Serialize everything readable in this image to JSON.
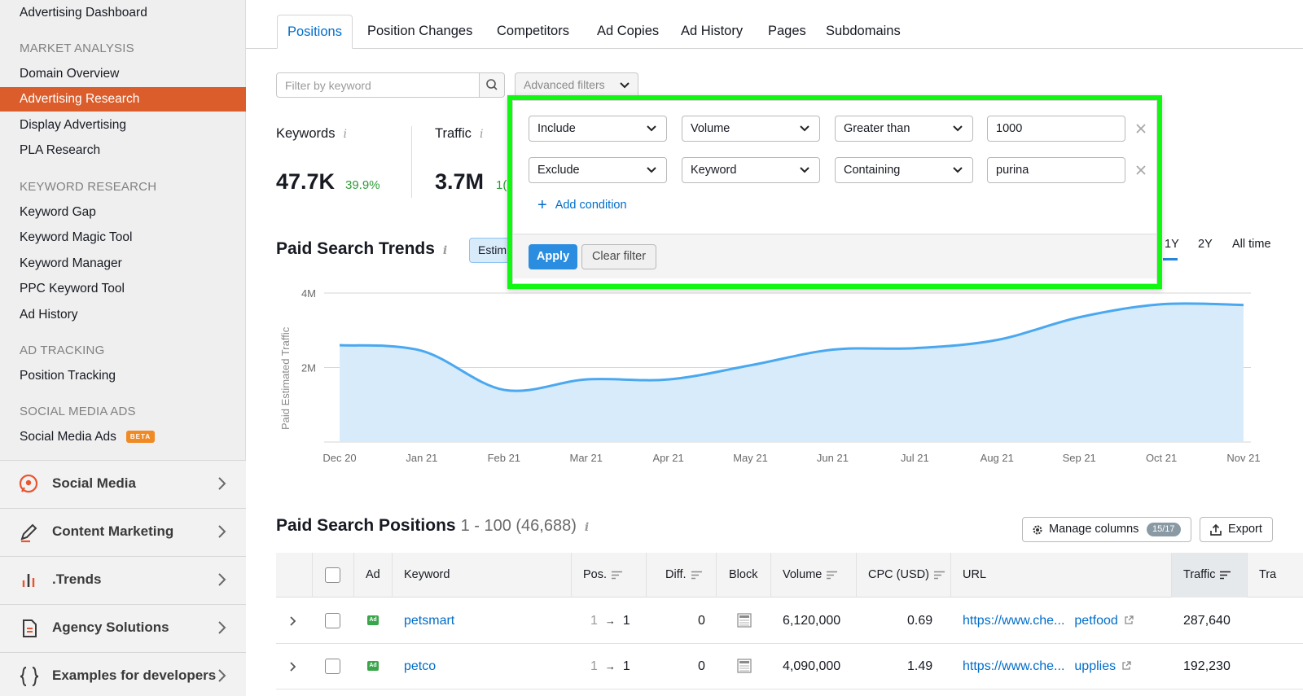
{
  "sidebar": {
    "top_item": "Advertising Dashboard",
    "groups": [
      {
        "title": "MARKET ANALYSIS",
        "items": [
          "Domain Overview",
          "Advertising Research",
          "Display Advertising",
          "PLA Research"
        ]
      },
      {
        "title": "KEYWORD RESEARCH",
        "items": [
          "Keyword Gap",
          "Keyword Magic Tool",
          "Keyword Manager",
          "PPC Keyword Tool",
          "Ad History"
        ]
      },
      {
        "title": "AD TRACKING",
        "items": [
          "Position Tracking"
        ]
      },
      {
        "title": "SOCIAL MEDIA ADS",
        "items": [
          "Social Media Ads"
        ]
      }
    ],
    "active_item": "Advertising Research",
    "beta_badge": "BETA",
    "sections": [
      "Social Media",
      "Content Marketing",
      ".Trends",
      "Agency Solutions",
      "Examples for developers"
    ]
  },
  "tabs": [
    "Positions",
    "Position Changes",
    "Competitors",
    "Ad Copies",
    "Ad History",
    "Pages",
    "Subdomains"
  ],
  "filter": {
    "placeholder": "Filter by keyword",
    "advanced_label": "Advanced filters"
  },
  "metrics": {
    "keywords_label": "Keywords",
    "keywords_value": "47.7K",
    "keywords_change": "39.9%",
    "traffic_label": "Traffic",
    "traffic_value": "3.7M",
    "traffic_change": "1("
  },
  "popup": {
    "conditions": [
      {
        "mode": "Include",
        "field": "Volume",
        "operator": "Greater than",
        "value": "1000"
      },
      {
        "mode": "Exclude",
        "field": "Keyword",
        "operator": "Containing",
        "value": "purina"
      }
    ],
    "add_condition": "Add condition",
    "apply": "Apply",
    "clear": "Clear filter"
  },
  "trends": {
    "title": "Paid Search Trends",
    "estim_label": "Estim",
    "ranges": [
      "1Y",
      "2Y",
      "All time"
    ],
    "active_range": "1Y"
  },
  "chart_data": {
    "type": "area",
    "ylabel": "Paid Estimated Traffic",
    "yticks": [
      "4M",
      "2M"
    ],
    "ylim": [
      0,
      4000000
    ],
    "x": [
      "Dec 20",
      "Jan 21",
      "Feb 21",
      "Mar 21",
      "Apr 21",
      "May 21",
      "Jun 21",
      "Jul 21",
      "Aug 21",
      "Sep 21",
      "Oct 21",
      "Nov 21"
    ],
    "series": [
      {
        "values": [
          2600000,
          2450000,
          1400000,
          1680000,
          1680000,
          2060000,
          2480000,
          2520000,
          2740000,
          3350000,
          3700000,
          3680000
        ]
      }
    ],
    "color": "#4aa8f0",
    "fill": "#d8ebfb"
  },
  "positions": {
    "title": "Paid Search Positions",
    "range": "1 - 100 (46,688)",
    "manage_label": "Manage columns",
    "manage_badge": "15/17",
    "export_label": "Export",
    "columns": [
      "Ad",
      "Keyword",
      "Pos.",
      "Diff.",
      "Block",
      "Volume",
      "CPC (USD)",
      "URL",
      "Traffic",
      "Tra"
    ],
    "rows": [
      {
        "keyword": "petsmart",
        "pos_from": "1",
        "pos_to": "1",
        "diff": "0",
        "volume": "6,120,000",
        "cpc": "0.69",
        "url": "https://www.che...",
        "url_tail": "petfood",
        "traffic": "287,640",
        "ad": "Ad"
      },
      {
        "keyword": "petco",
        "pos_from": "1",
        "pos_to": "1",
        "diff": "0",
        "volume": "4,090,000",
        "cpc": "1.49",
        "url": "https://www.che...",
        "url_tail": "upplies",
        "traffic": "192,230",
        "ad": "Ad"
      }
    ]
  }
}
